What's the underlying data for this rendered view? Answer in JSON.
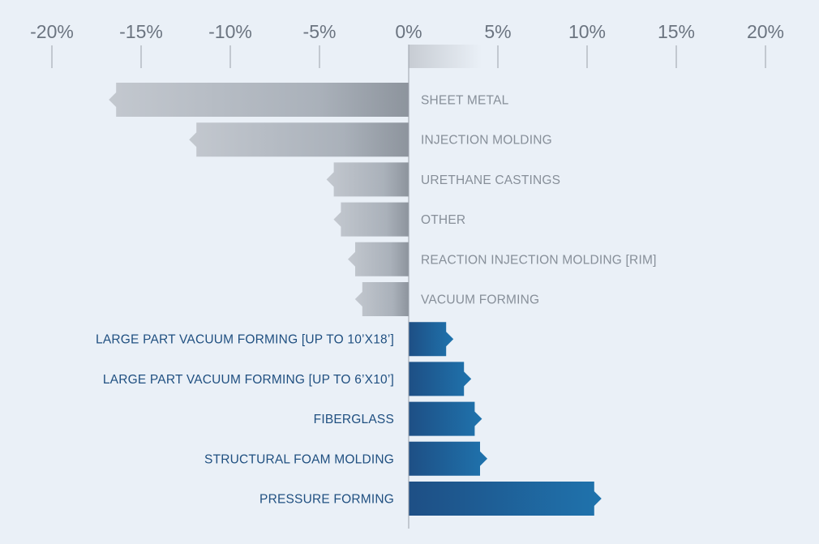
{
  "chart_data": {
    "type": "bar",
    "orientation": "horizontal",
    "x_ticks": [
      "-20%",
      "-15%",
      "-10%",
      "-5%",
      "0%",
      "5%",
      "10%",
      "15%",
      "20%"
    ],
    "x_tick_values": [
      -20,
      -15,
      -10,
      -5,
      0,
      5,
      10,
      15,
      20
    ],
    "xlim": [
      -20,
      20
    ],
    "categories": [
      "SHEET METAL",
      "INJECTION MOLDING",
      "URETHANE CASTINGS",
      "OTHER",
      "REACTION INJECTION MOLDING [RIM]",
      "VACUUM FORMING",
      "LARGE PART VACUUM FORMING [UP TO 10’X18’]",
      "LARGE PART VACUUM FORMING [UP TO 6’X10’]",
      "FIBERGLASS",
      "STRUCTURAL FOAM MOLDING",
      "PRESSURE FORMING"
    ],
    "values": [
      -16.4,
      -11.9,
      -4.2,
      -3.8,
      -3.0,
      -2.6,
      2.1,
      3.1,
      3.7,
      4.0,
      10.4
    ],
    "colors": {
      "negative": "#a7afb9",
      "positive": "#1f5e95",
      "negative_label": "#878f99",
      "positive_label": "#1f4f80",
      "axis": "#9aa1aa"
    },
    "grid": false
  }
}
